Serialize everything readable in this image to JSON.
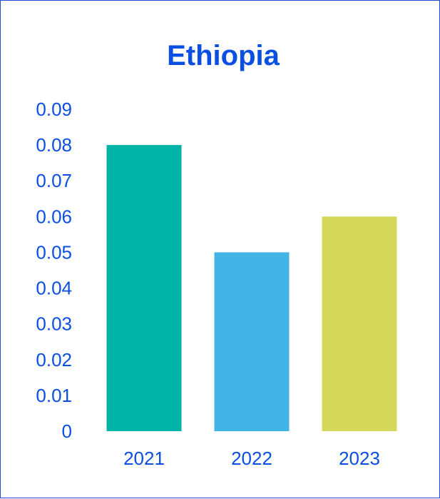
{
  "chart_data": {
    "type": "bar",
    "title": "Ethiopia",
    "xlabel": "",
    "ylabel": "",
    "categories": [
      "2021",
      "2022",
      "2023"
    ],
    "values": [
      0.08,
      0.05,
      0.06
    ],
    "ylim": [
      0,
      0.09
    ],
    "yticks": [
      "0",
      "0.01",
      "0.02",
      "0.03",
      "0.04",
      "0.05",
      "0.06",
      "0.07",
      "0.08",
      "0.09"
    ],
    "bar_colors": [
      "#00b3a7",
      "#42b4e6",
      "#d4d85a"
    ],
    "text_color": "#0a4fe3",
    "grid": false,
    "legend": "none"
  }
}
